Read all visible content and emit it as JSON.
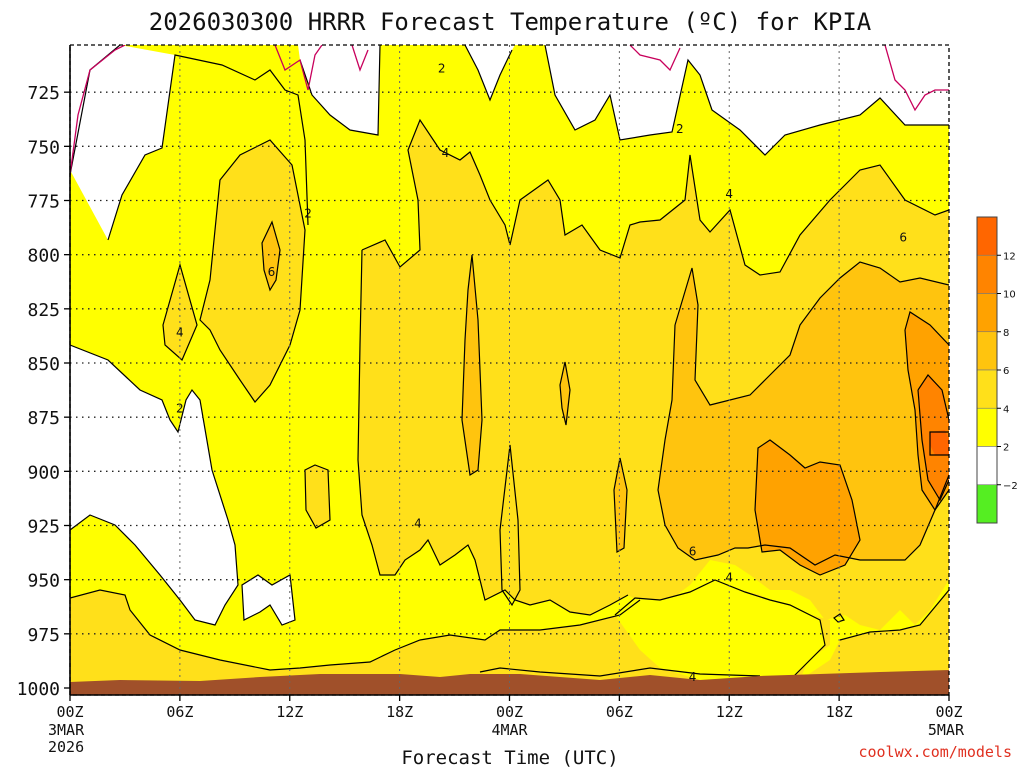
{
  "chart_data": {
    "type": "heatmap",
    "title": "2026030300 HRRR Forecast Temperature (ºC) for KPIA",
    "xlabel": "Forecast Time (UTC)",
    "ylabel": "",
    "x_hours": [
      0,
      48
    ],
    "x_ticks": [
      {
        "hour": 0,
        "label": "00Z",
        "sub": [
          "3MAR",
          "2026"
        ]
      },
      {
        "hour": 6,
        "label": "06Z",
        "sub": []
      },
      {
        "hour": 12,
        "label": "12Z",
        "sub": []
      },
      {
        "hour": 18,
        "label": "18Z",
        "sub": []
      },
      {
        "hour": 24,
        "label": "00Z",
        "sub": [
          "4MAR"
        ]
      },
      {
        "hour": 30,
        "label": "06Z",
        "sub": []
      },
      {
        "hour": 36,
        "label": "12Z",
        "sub": []
      },
      {
        "hour": 42,
        "label": "18Z",
        "sub": []
      },
      {
        "hour": 48,
        "label": "00Z",
        "sub": [
          "5MAR"
        ]
      }
    ],
    "y_pressure_range": [
      1000,
      700
    ],
    "y_ticks": [
      "725",
      "750",
      "775",
      "800",
      "825",
      "850",
      "875",
      "900",
      "925",
      "950",
      "975",
      "1000"
    ],
    "grid": true,
    "contour_labels": [
      {
        "text": "2",
        "hour": 20.3,
        "p": 714
      },
      {
        "text": "2",
        "hour": 33.3,
        "p": 742
      },
      {
        "text": "2",
        "hour": 13.0,
        "p": 781
      },
      {
        "text": "2",
        "hour": 6.0,
        "p": 871
      },
      {
        "text": "4",
        "hour": 20.5,
        "p": 753
      },
      {
        "text": "4",
        "hour": 36.0,
        "p": 772
      },
      {
        "text": "4",
        "hour": 6.0,
        "p": 836
      },
      {
        "text": "4",
        "hour": 19.0,
        "p": 924
      },
      {
        "text": "4",
        "hour": 36.0,
        "p": 949
      },
      {
        "text": "4",
        "hour": 34.0,
        "p": 995
      },
      {
        "text": "6",
        "hour": 11.0,
        "p": 808
      },
      {
        "text": "6",
        "hour": 45.5,
        "p": 792
      },
      {
        "text": "6",
        "hour": 34.0,
        "p": 937
      }
    ],
    "legend": {
      "placement": "right",
      "ticks": [
        "12",
        "10",
        "8",
        "6",
        "4",
        "2",
        "−2"
      ],
      "levels": [
        {
          "range": "<-2",
          "color": "#55ee22"
        },
        {
          "range": "-2 to 2",
          "color": "#ffffff"
        },
        {
          "range": "2 to 4",
          "color": "#ffff00"
        },
        {
          "range": "4 to 6",
          "color": "#ffe01a"
        },
        {
          "range": "6 to 8",
          "color": "#ffc40e"
        },
        {
          "range": "8 to 10",
          "color": "#ffa200"
        },
        {
          "range": "10 to 12",
          "color": "#ff8400"
        },
        {
          "range": ">12",
          "color": "#ff6600"
        }
      ]
    },
    "colors": {
      "cold_contour": "#c8005c",
      "ground": "#a0502a",
      "credit": "#e03020"
    },
    "credit": "coolwx.com/models"
  }
}
